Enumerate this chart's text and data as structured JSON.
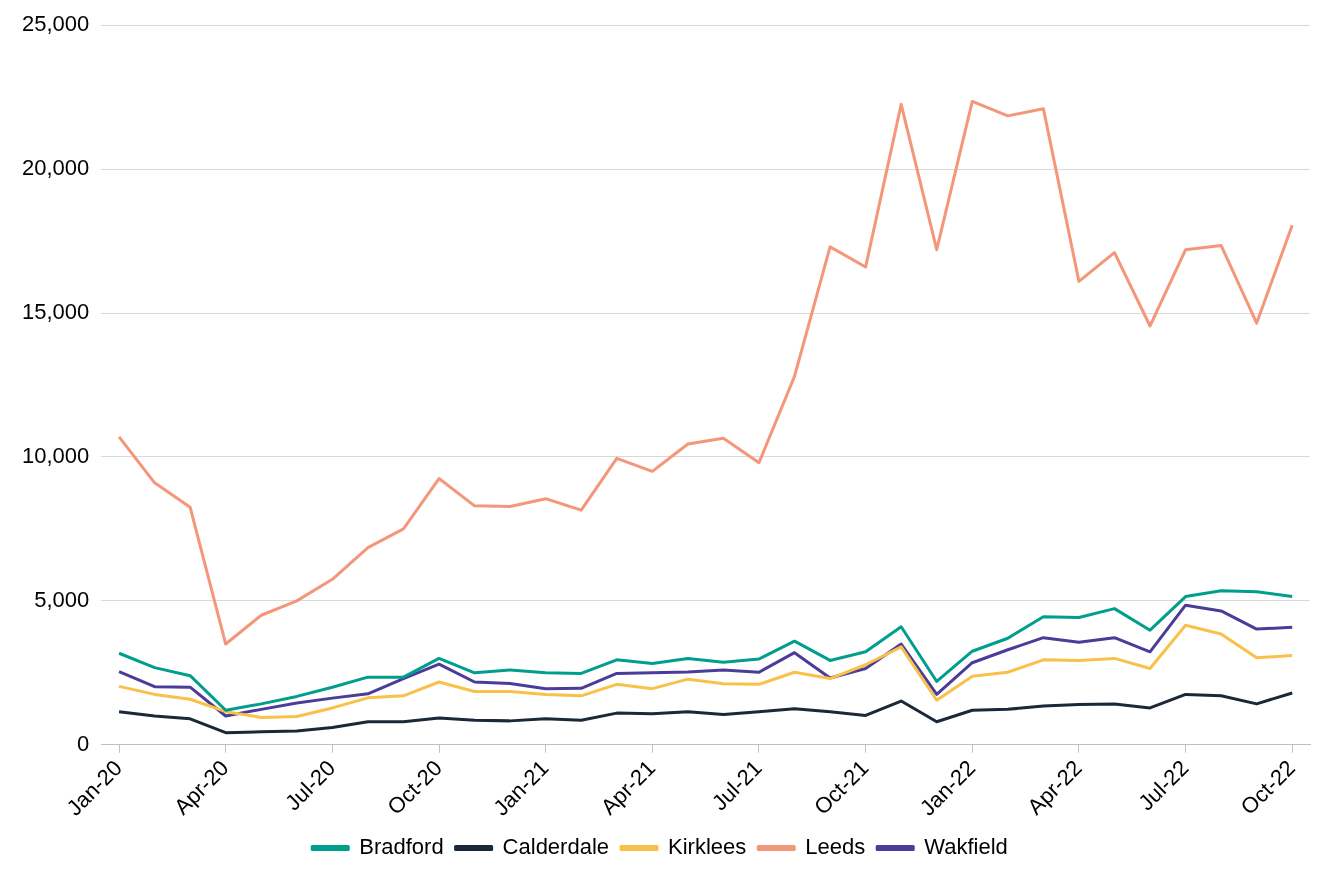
{
  "chart_data": {
    "type": "line",
    "categories": [
      "Jan-20",
      null,
      null,
      "Apr-20",
      null,
      null,
      "Jul-20",
      null,
      null,
      "Oct-20",
      null,
      null,
      "Jan-21",
      null,
      null,
      "Apr-21",
      null,
      null,
      "Jul-21",
      null,
      null,
      "Oct-21",
      null,
      null,
      "Jan-22",
      null,
      null,
      "Apr-22",
      null,
      null,
      "Jul-22",
      null,
      null,
      "Oct-22"
    ],
    "series": [
      {
        "name": "Bradford",
        "color": "#009e8c",
        "values": [
          3180,
          2680,
          2400,
          1200,
          1420,
          1680,
          2000,
          2350,
          2350,
          3000,
          2500,
          2600,
          2500,
          2480,
          2950,
          2820,
          3000,
          2870,
          2980,
          3600,
          2930,
          3230,
          4100,
          2200,
          3250,
          3700,
          4450,
          4420,
          4730,
          3980,
          5150,
          5350,
          5320,
          5150
        ]
      },
      {
        "name": "Calderdale",
        "color": "#1b2838",
        "values": [
          1150,
          1000,
          900,
          420,
          450,
          480,
          600,
          800,
          800,
          930,
          850,
          830,
          900,
          850,
          1100,
          1080,
          1150,
          1050,
          1150,
          1250,
          1150,
          1020,
          1520,
          800,
          1200,
          1230,
          1350,
          1400,
          1420,
          1280,
          1750,
          1700,
          1420,
          1800
        ]
      },
      {
        "name": "Kirklees",
        "color": "#f9c04a",
        "values": [
          2030,
          1750,
          1580,
          1150,
          950,
          980,
          1280,
          1630,
          1700,
          2180,
          1850,
          1850,
          1750,
          1700,
          2100,
          1950,
          2280,
          2120,
          2100,
          2520,
          2300,
          2780,
          3400,
          1550,
          2380,
          2520,
          2950,
          2930,
          3000,
          2650,
          4150,
          3850,
          3020,
          3100
        ]
      },
      {
        "name": "Leeds",
        "color": "#f4967a",
        "values": [
          10700,
          9100,
          8250,
          3500,
          4500,
          5000,
          5750,
          6850,
          7500,
          9250,
          8300,
          8280,
          8550,
          8150,
          9950,
          9500,
          10450,
          10650,
          9800,
          12800,
          17300,
          16600,
          22250,
          17200,
          22350,
          21850,
          22100,
          16100,
          17100,
          14550,
          17200,
          17350,
          14650,
          18050
        ]
      },
      {
        "name": "Wakfield",
        "color": "#4b3c9a",
        "values": [
          2540,
          2020,
          2000,
          1000,
          1230,
          1450,
          1620,
          1770,
          2300,
          2800,
          2180,
          2130,
          1950,
          1960,
          2480,
          2500,
          2530,
          2600,
          2520,
          3200,
          2320,
          2650,
          3500,
          1750,
          2850,
          3300,
          3720,
          3560,
          3720,
          3230,
          4850,
          4650,
          4020,
          4080
        ]
      }
    ],
    "ylim": [
      0,
      25000
    ],
    "yticks": [
      {
        "value": 0,
        "label": "0"
      },
      {
        "value": 5000,
        "label": "5,000"
      },
      {
        "value": 10000,
        "label": "10,000"
      },
      {
        "value": 15000,
        "label": "15,000"
      },
      {
        "value": 20000,
        "label": "20,000"
      },
      {
        "value": 25000,
        "label": "25,000"
      }
    ],
    "grid": "y",
    "legend": "bottom",
    "marker": "none"
  }
}
